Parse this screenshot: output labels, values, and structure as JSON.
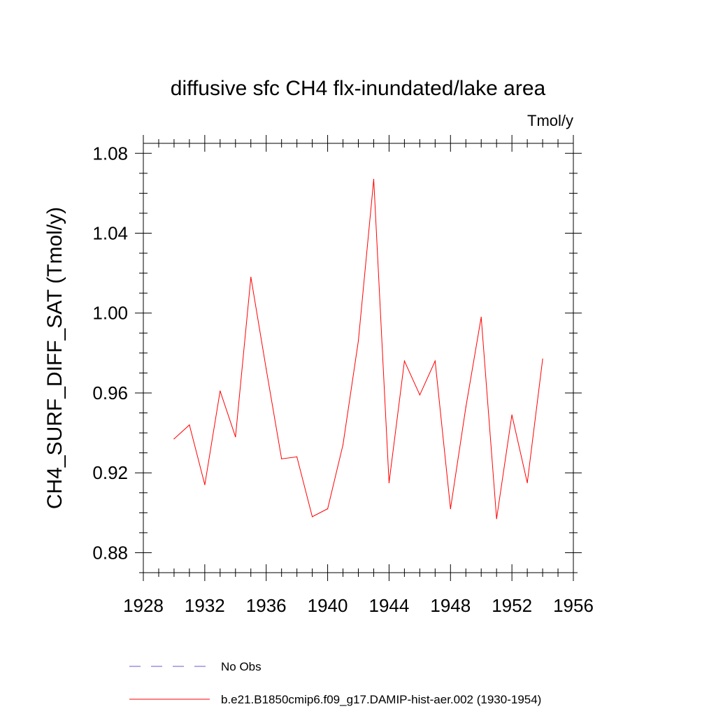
{
  "chart_data": {
    "type": "line",
    "title": "diffusive sfc CH4 flx-inundated/lake area",
    "units_label": "Tmol/y",
    "ylabel": "CH4_SURF_DIFF_SAT  (Tmol/y)",
    "xlabel": "",
    "xlim": [
      1928,
      1956
    ],
    "ylim": [
      0.87,
      1.085
    ],
    "x_ticks": [
      1928,
      1932,
      1936,
      1940,
      1944,
      1948,
      1952,
      1956
    ],
    "x_tick_labels": [
      "1928",
      "1932",
      "1936",
      "1940",
      "1944",
      "1948",
      "1952",
      "1956"
    ],
    "y_ticks": [
      0.88,
      0.92,
      0.96,
      1.0,
      1.04,
      1.08
    ],
    "y_tick_labels": [
      "0.88",
      "0.92",
      "0.96",
      "1.00",
      "1.04",
      "1.08"
    ],
    "grid": false,
    "legend_position": "bottom",
    "series": [
      {
        "name": "b.e21.B1850cmip6.f09_g17.DAMIP-hist-aer.002 (1930-1954)",
        "color": "#ff0000",
        "style": "solid",
        "x": [
          1930,
          1931,
          1932,
          1933,
          1934,
          1935,
          1936,
          1937,
          1938,
          1939,
          1940,
          1941,
          1942,
          1943,
          1944,
          1945,
          1946,
          1947,
          1948,
          1949,
          1950,
          1951,
          1952,
          1953,
          1954
        ],
        "values": [
          0.937,
          0.944,
          0.914,
          0.961,
          0.938,
          1.018,
          0.972,
          0.927,
          0.928,
          0.898,
          0.902,
          0.934,
          0.986,
          1.067,
          0.915,
          0.976,
          0.959,
          0.976,
          0.902,
          0.953,
          0.998,
          0.897,
          0.949,
          0.915,
          0.977
        ]
      },
      {
        "name": "No Obs",
        "color": "#6a5acd",
        "style": "dashed",
        "x": [],
        "values": []
      }
    ]
  }
}
